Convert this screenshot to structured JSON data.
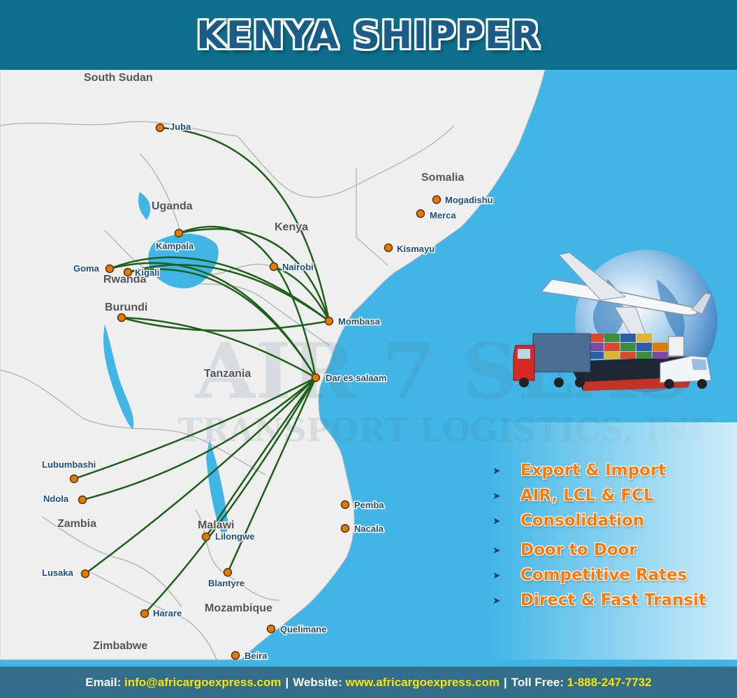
{
  "title": "KENYA SHIPPER",
  "colors": {
    "header_bg": "#0d6f8c",
    "sea": "#41b6e6",
    "land": "#efefef",
    "route": "#1f5f1a",
    "city_dot": "#e07b00",
    "service_text": "#ff7a00",
    "footer_bg": "#326e8a",
    "footer_highlight": "#ffe400"
  },
  "countries": [
    {
      "name": "South Sudan"
    },
    {
      "name": "Uganda"
    },
    {
      "name": "Kenya"
    },
    {
      "name": "Somalia"
    },
    {
      "name": "Rwanda"
    },
    {
      "name": "Burundi"
    },
    {
      "name": "Tanzania"
    },
    {
      "name": "Zambia"
    },
    {
      "name": "Malawi"
    },
    {
      "name": "Mozambique"
    },
    {
      "name": "Zimbabwe"
    }
  ],
  "cities": [
    {
      "name": "Juba"
    },
    {
      "name": "Mogadishu"
    },
    {
      "name": "Merca"
    },
    {
      "name": "Kampala"
    },
    {
      "name": "Nairobi"
    },
    {
      "name": "Kismayu"
    },
    {
      "name": "Goma"
    },
    {
      "name": "Kigali"
    },
    {
      "name": "Mombasa"
    },
    {
      "name": "Dar es salaam"
    },
    {
      "name": "Lubumbashi"
    },
    {
      "name": "Ndola"
    },
    {
      "name": "Pemba"
    },
    {
      "name": "Nacala"
    },
    {
      "name": "Lilongwe"
    },
    {
      "name": "Lusaka"
    },
    {
      "name": "Blantyre"
    },
    {
      "name": "Harare"
    },
    {
      "name": "Quelimane"
    },
    {
      "name": "Beira"
    }
  ],
  "routes": [
    {
      "from": "Mombasa",
      "to": "Juba"
    },
    {
      "from": "Mombasa",
      "to": "Kampala"
    },
    {
      "from": "Mombasa",
      "to": "Nairobi"
    },
    {
      "from": "Mombasa",
      "to": "Goma"
    },
    {
      "from": "Mombasa",
      "to": "Kigali"
    },
    {
      "from": "Mombasa",
      "to": "Burundi"
    },
    {
      "from": "Dar es salaam",
      "to": "Kampala"
    },
    {
      "from": "Dar es salaam",
      "to": "Goma"
    },
    {
      "from": "Dar es salaam",
      "to": "Kigali"
    },
    {
      "from": "Dar es salaam",
      "to": "Burundi"
    },
    {
      "from": "Dar es salaam",
      "to": "Lubumbashi"
    },
    {
      "from": "Dar es salaam",
      "to": "Ndola"
    },
    {
      "from": "Dar es salaam",
      "to": "Lusaka"
    },
    {
      "from": "Dar es salaam",
      "to": "Lilongwe"
    },
    {
      "from": "Dar es salaam",
      "to": "Blantyre"
    },
    {
      "from": "Dar es salaam",
      "to": "Harare"
    }
  ],
  "watermark": {
    "brand": "AIR 7 SEAS",
    "tagline": "TRANSPORT LOGISTICS, INC"
  },
  "services": [
    {
      "label": "Export & Import"
    },
    {
      "label": "AIR, LCL & FCL"
    },
    {
      "label": "Consolidation"
    },
    {
      "label": "Door to Door"
    },
    {
      "label": "Competitive Rates"
    },
    {
      "label": "Direct & Fast Transit"
    }
  ],
  "footer": {
    "email_label": "Email:",
    "email": "info@africargoexpress.com",
    "website_label": "Website:",
    "website": "www.africargoexpress.com",
    "tollfree_label": "Toll Free:",
    "tollfree": "1-888-247-7732",
    "separator": "|"
  }
}
